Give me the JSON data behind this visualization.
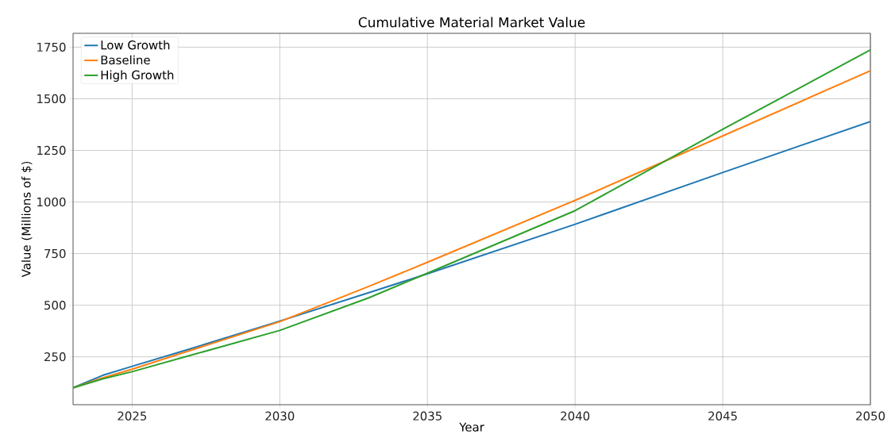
{
  "chart_data": {
    "type": "line",
    "title": "Cumulative Material Market Value",
    "xlabel": "Year",
    "ylabel": "Value (Millions of $)",
    "x": [
      2023,
      2024,
      2025,
      2027,
      2030,
      2033,
      2035,
      2040,
      2045,
      2050
    ],
    "series": [
      {
        "name": "Low Growth",
        "color": "#1f77b4",
        "values": [
          100,
          160,
          204,
          290,
          423,
          560,
          652,
          892,
          1143,
          1390
        ]
      },
      {
        "name": "Baseline",
        "color": "#ff7f0e",
        "values": [
          100,
          148,
          190,
          282,
          420,
          590,
          708,
          1008,
          1320,
          1636
        ]
      },
      {
        "name": "High Growth",
        "color": "#2ca02c",
        "values": [
          100,
          143,
          178,
          258,
          378,
          535,
          655,
          958,
          1352,
          1737
        ]
      }
    ],
    "xlim": [
      2023,
      2050
    ],
    "ylim": [
      18,
      1817
    ],
    "xticks": [
      2025,
      2030,
      2035,
      2040,
      2045,
      2050
    ],
    "yticks": [
      250,
      500,
      750,
      1000,
      1250,
      1500,
      1750
    ],
    "grid": true,
    "legend": "top left",
    "marker": "none",
    "line_style": "solid"
  }
}
